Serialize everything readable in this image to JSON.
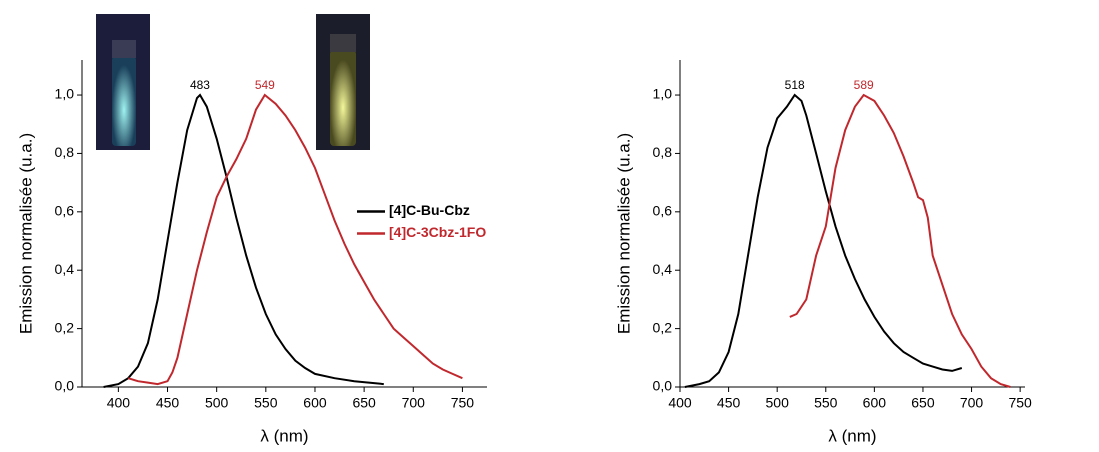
{
  "chart_data": [
    {
      "type": "line",
      "x_label": "λ (nm)",
      "y_label": "Emission normalisée (u.a.)",
      "xlim": [
        363,
        775
      ],
      "xticks": [
        400,
        450,
        500,
        550,
        600,
        650,
        700,
        750
      ],
      "ylim": [
        0,
        1.12
      ],
      "yticks": [
        {
          "value": 0,
          "label": "0,0"
        },
        {
          "value": 0.2,
          "label": "0,2"
        },
        {
          "value": 0.4,
          "label": "0,4"
        },
        {
          "value": 0.6,
          "label": "0,6"
        },
        {
          "value": 0.8,
          "label": "0,8"
        },
        {
          "value": 1.0,
          "label": "1,0"
        }
      ],
      "legend": "center-right",
      "series": [
        {
          "name": "[4]C-Bu-Cbz",
          "color": "#000000",
          "x": [
            385,
            400,
            410,
            420,
            430,
            440,
            450,
            460,
            470,
            480,
            483,
            490,
            500,
            510,
            520,
            530,
            540,
            550,
            560,
            570,
            580,
            590,
            600,
            620,
            640,
            670
          ],
          "values": [
            0.0,
            0.01,
            0.03,
            0.07,
            0.15,
            0.3,
            0.5,
            0.7,
            0.88,
            0.99,
            1.0,
            0.96,
            0.85,
            0.72,
            0.58,
            0.45,
            0.34,
            0.25,
            0.18,
            0.13,
            0.09,
            0.065,
            0.045,
            0.03,
            0.02,
            0.01
          ]
        },
        {
          "name": "[4]C-3Cbz-1FO",
          "color": "#c0282d",
          "x": [
            410,
            420,
            430,
            440,
            450,
            455,
            460,
            470,
            480,
            490,
            500,
            510,
            520,
            530,
            540,
            549,
            560,
            570,
            580,
            590,
            600,
            610,
            620,
            630,
            640,
            650,
            660,
            670,
            680,
            690,
            700,
            710,
            720,
            730,
            740,
            750
          ],
          "values": [
            0.03,
            0.02,
            0.015,
            0.01,
            0.02,
            0.05,
            0.1,
            0.25,
            0.4,
            0.53,
            0.65,
            0.72,
            0.78,
            0.85,
            0.95,
            1.0,
            0.97,
            0.93,
            0.88,
            0.82,
            0.75,
            0.66,
            0.57,
            0.49,
            0.42,
            0.36,
            0.3,
            0.25,
            0.2,
            0.17,
            0.14,
            0.11,
            0.08,
            0.06,
            0.045,
            0.03
          ]
        }
      ],
      "annotations": [
        {
          "text": "483",
          "x": 483,
          "y": 1.0,
          "color": "#000000"
        },
        {
          "text": "549",
          "x": 549,
          "y": 1.0,
          "color": "#c0282d"
        }
      ]
    },
    {
      "type": "line",
      "x_label": "λ (nm)",
      "y_label": "Emission normalisée (u.a.)",
      "xlim": [
        400,
        755
      ],
      "xticks": [
        400,
        450,
        500,
        550,
        600,
        650,
        700,
        750
      ],
      "ylim": [
        0,
        1.12
      ],
      "yticks": [
        {
          "value": 0,
          "label": "0,0"
        },
        {
          "value": 0.2,
          "label": "0,2"
        },
        {
          "value": 0.4,
          "label": "0,4"
        },
        {
          "value": 0.6,
          "label": "0,6"
        },
        {
          "value": 0.8,
          "label": "0,8"
        },
        {
          "value": 1.0,
          "label": "1,0"
        }
      ],
      "series": [
        {
          "color": "#000000",
          "x": [
            405,
            420,
            430,
            440,
            450,
            460,
            470,
            480,
            490,
            500,
            510,
            518,
            525,
            530,
            540,
            550,
            560,
            570,
            580,
            590,
            600,
            610,
            620,
            630,
            640,
            650,
            660,
            670,
            680,
            690
          ],
          "values": [
            0.0,
            0.01,
            0.02,
            0.05,
            0.12,
            0.25,
            0.45,
            0.65,
            0.82,
            0.92,
            0.96,
            1.0,
            0.98,
            0.93,
            0.8,
            0.67,
            0.55,
            0.45,
            0.37,
            0.3,
            0.24,
            0.19,
            0.15,
            0.12,
            0.1,
            0.08,
            0.07,
            0.06,
            0.055,
            0.065
          ]
        },
        {
          "color": "#c0282d",
          "x": [
            513,
            520,
            530,
            540,
            550,
            560,
            570,
            580,
            589,
            600,
            610,
            620,
            630,
            640,
            645,
            650,
            655,
            660,
            670,
            680,
            690,
            700,
            710,
            720,
            730,
            740
          ],
          "values": [
            0.24,
            0.25,
            0.3,
            0.45,
            0.55,
            0.75,
            0.88,
            0.96,
            1.0,
            0.98,
            0.93,
            0.87,
            0.79,
            0.7,
            0.65,
            0.64,
            0.58,
            0.45,
            0.35,
            0.25,
            0.18,
            0.13,
            0.07,
            0.03,
            0.01,
            0.0
          ]
        }
      ],
      "annotations": [
        {
          "text": "518",
          "x": 518,
          "y": 1.0,
          "color": "#000000"
        },
        {
          "text": "589",
          "x": 589,
          "y": 1.0,
          "color": "#c0282d"
        }
      ]
    }
  ]
}
